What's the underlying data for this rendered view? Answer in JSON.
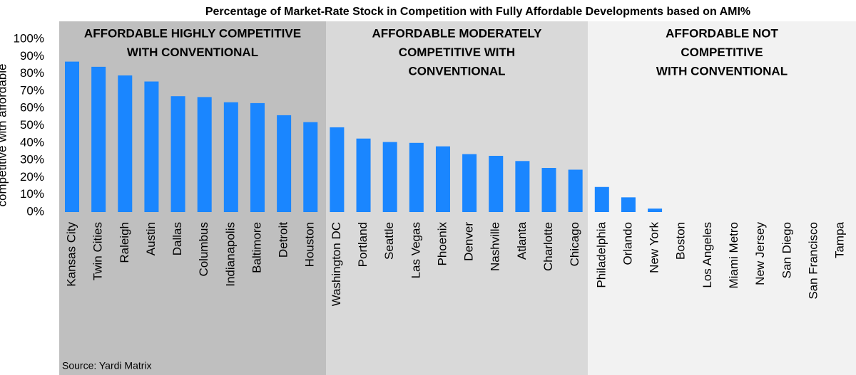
{
  "chart_data": {
    "type": "bar",
    "title": "Percentage of Market-Rate Stock in Competition with Fully Affordable Developments based on AMI%",
    "y_label": "competitive with affordable",
    "source": "Source: Yardi Matrix",
    "categories": [
      "Kansas City",
      "Twin Cities",
      "Raleigh",
      "Austin",
      "Dallas",
      "Columbus",
      "Indianapolis",
      "Baltimore",
      "Detroit",
      "Houston",
      "Washington DC",
      "Portland",
      "Seattle",
      "Las Vegas",
      "Phoenix",
      "Denver",
      "Nashville",
      "Atlanta",
      "Charlotte",
      "Chicago",
      "Philadelphia",
      "Orlando",
      "New York",
      "Boston",
      "Los Angeles",
      "Miami Metro",
      "New Jersey",
      "San Diego",
      "San Francisco",
      "Tampa"
    ],
    "values": [
      87,
      84,
      79,
      75.5,
      67,
      66.5,
      63.5,
      63,
      56,
      52,
      49,
      42.5,
      40.5,
      40,
      38,
      33.5,
      32.5,
      29.5,
      25.5,
      24.5,
      14.5,
      8.5,
      2,
      0,
      0,
      0,
      0,
      0,
      0,
      0
    ],
    "color": "#1a86ff",
    "ylim": [
      0,
      100
    ],
    "yticks": [
      {
        "value": 0,
        "label": "0%"
      },
      {
        "value": 10,
        "label": "10%"
      },
      {
        "value": 20,
        "label": "20%"
      },
      {
        "value": 30,
        "label": "30%"
      },
      {
        "value": 40,
        "label": "40%"
      },
      {
        "value": 50,
        "label": "50%"
      },
      {
        "value": 60,
        "label": "60%"
      },
      {
        "value": 70,
        "label": "70%"
      },
      {
        "value": 80,
        "label": "80%"
      },
      {
        "value": 90,
        "label": "90%"
      },
      {
        "value": 100,
        "label": "100%"
      }
    ],
    "regions": [
      {
        "lines": [
          "AFFORDABLE HIGHLY COMPETITIVE",
          "WITH CONVENTIONAL"
        ],
        "color": "#bfbfbf"
      },
      {
        "lines": [
          "AFFORDABLE MODERATELY",
          "COMPETITIVE WITH",
          "CONVENTIONAL"
        ],
        "color": "#d9d9d9"
      },
      {
        "lines": [
          "AFFORDABLE NOT",
          "COMPETITIVE",
          "WITH CONVENTIONAL"
        ],
        "color": "#f2f2f2"
      }
    ]
  }
}
